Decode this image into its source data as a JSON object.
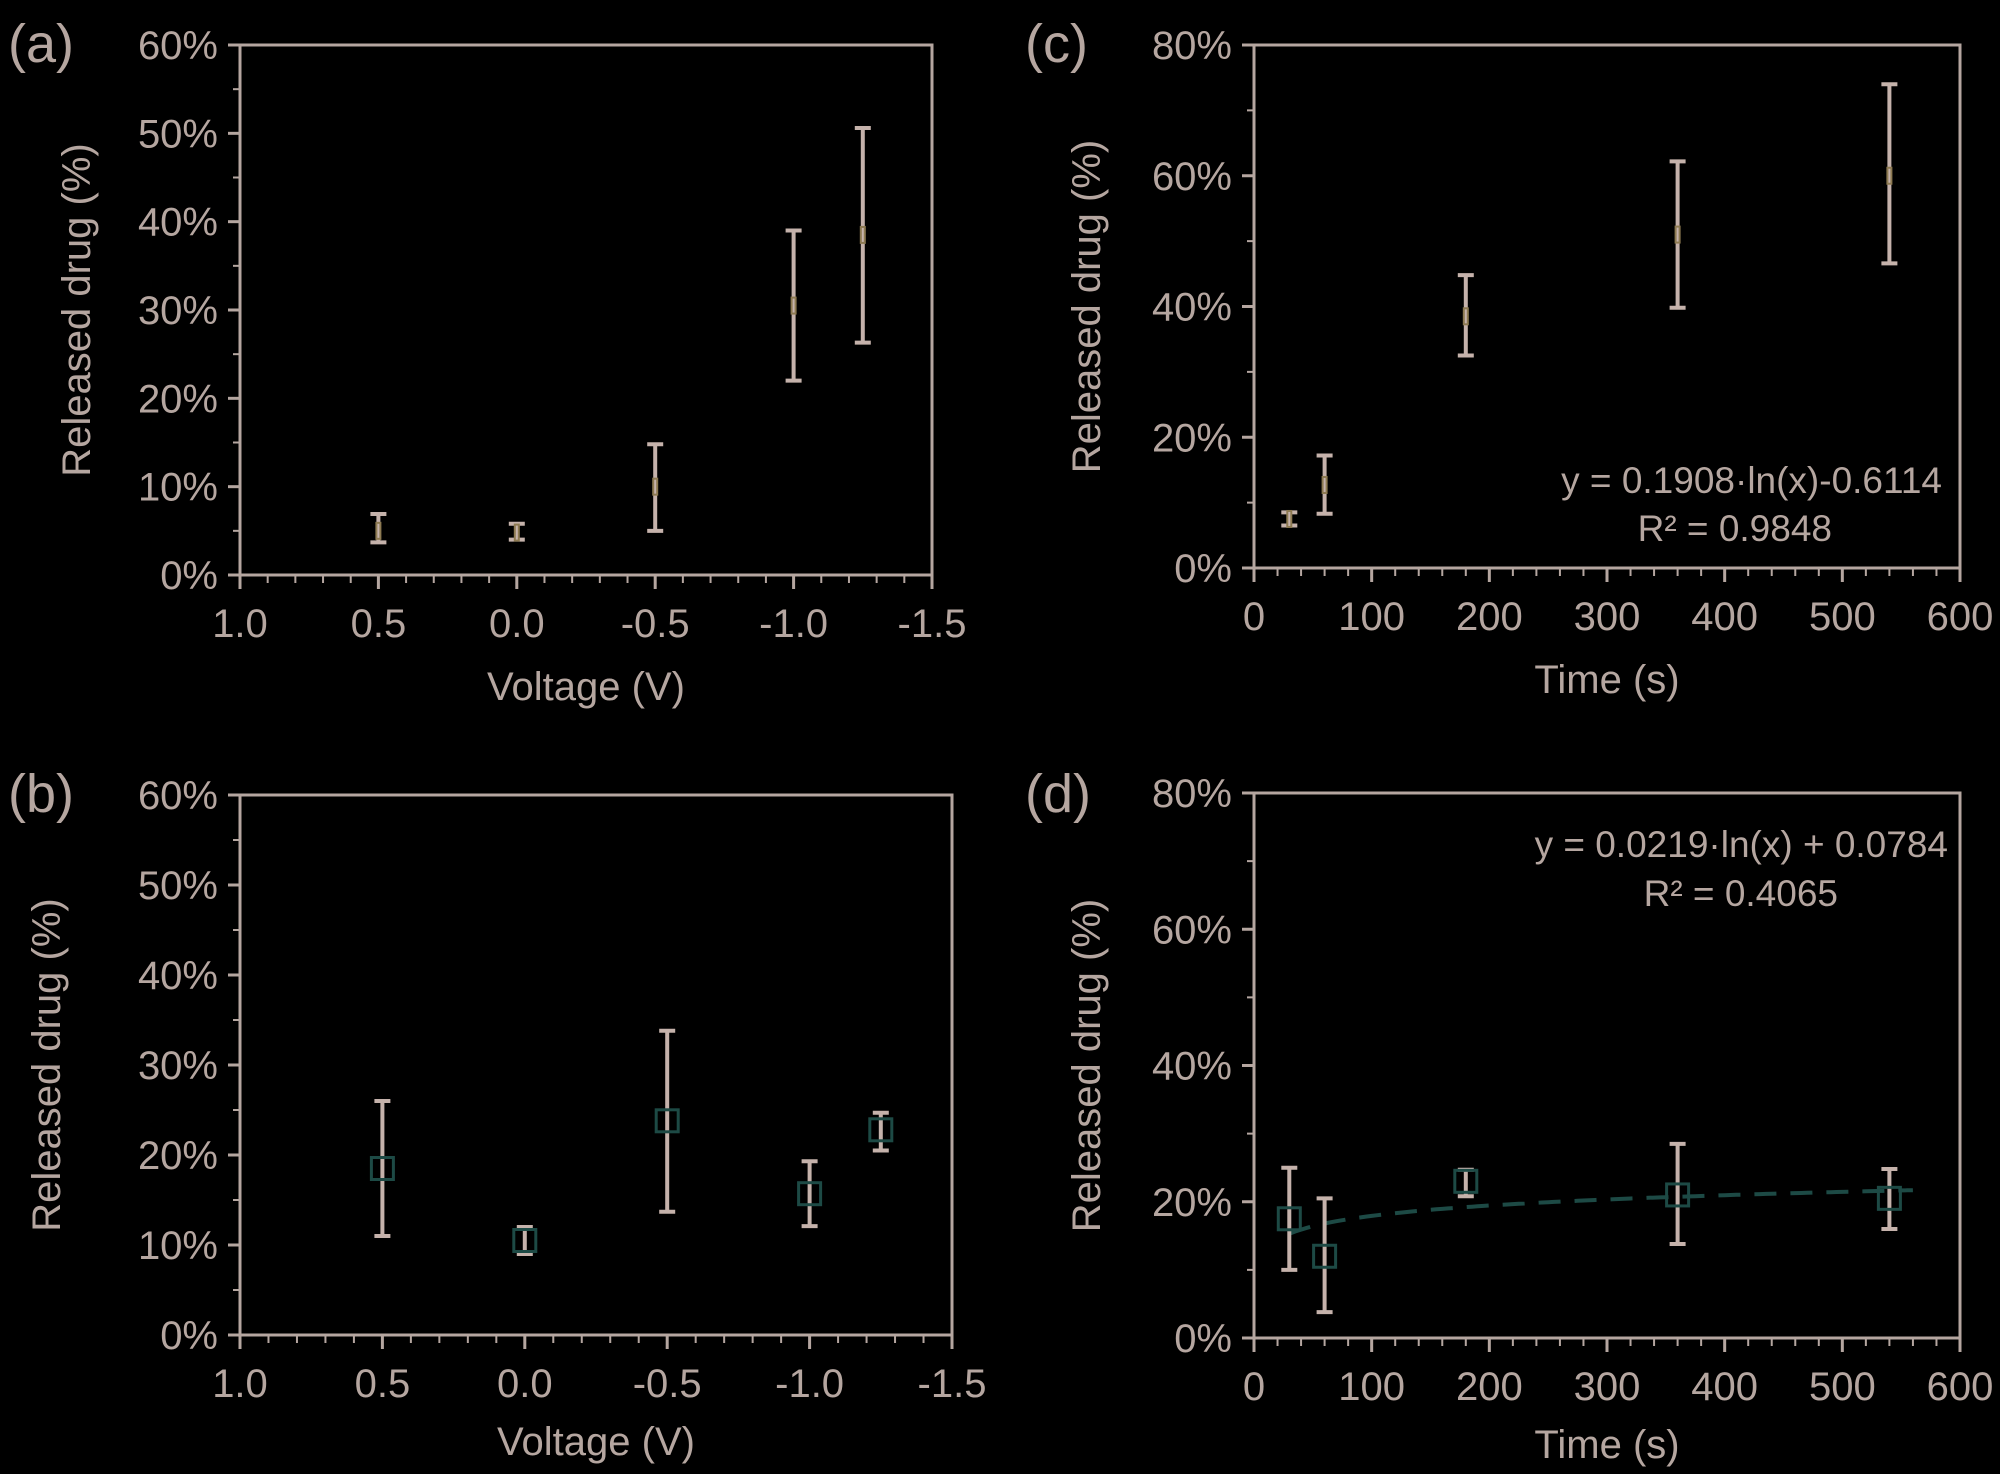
{
  "chart_data": [
    {
      "id": "a",
      "type": "scatter",
      "panel_label": "(a)",
      "xlabel": "Voltage (V)",
      "ylabel": "Released drug (%)",
      "xlim": [
        1.0,
        -1.5
      ],
      "ylim": [
        0,
        0.6
      ],
      "x_ticks": [
        "1.0",
        "0.5",
        "0.0",
        "-0.5",
        "-1.0",
        "-1.5"
      ],
      "y_ticks": [
        "0%",
        "10%",
        "20%",
        "30%",
        "40%",
        "50%",
        "60%"
      ],
      "series": [
        {
          "name": "released",
          "x": [
            0.5,
            0.0,
            -0.5,
            -1.0,
            -1.25
          ],
          "y": [
            0.05,
            0.048,
            0.1,
            0.305,
            0.385
          ],
          "err_low": [
            0.037,
            0.04,
            0.05,
            0.22,
            0.263
          ],
          "err_high": [
            0.069,
            0.058,
            0.148,
            0.39,
            0.506
          ]
        }
      ],
      "marker": "a"
    },
    {
      "id": "b",
      "type": "scatter",
      "panel_label": "(b)",
      "xlabel": "Voltage (V)",
      "ylabel": "Released drug (%)",
      "xlim": [
        1.0,
        -1.5
      ],
      "ylim": [
        0,
        0.6
      ],
      "x_ticks": [
        "1.0",
        "0.5",
        "0.0",
        "-0.5",
        "-1.0",
        "-1.5"
      ],
      "y_ticks": [
        "0%",
        "10%",
        "20%",
        "30%",
        "40%",
        "50%",
        "60%"
      ],
      "series": [
        {
          "name": "released",
          "x": [
            0.5,
            0.0,
            -0.5,
            -1.0,
            -1.25
          ],
          "y": [
            0.185,
            0.105,
            0.238,
            0.157,
            0.228
          ],
          "err_low": [
            0.11,
            0.09,
            0.137,
            0.121,
            0.205
          ],
          "err_high": [
            0.26,
            0.12,
            0.338,
            0.193,
            0.247
          ]
        }
      ],
      "marker": "b"
    },
    {
      "id": "c",
      "type": "scatter",
      "panel_label": "(c)",
      "xlabel": "Time (s)",
      "ylabel": "Released drug (%)",
      "xlim": [
        0,
        600
      ],
      "ylim": [
        0,
        0.8
      ],
      "x_ticks": [
        "0",
        "100",
        "200",
        "300",
        "400",
        "500",
        "600"
      ],
      "y_ticks": [
        "0%",
        "20%",
        "40%",
        "60%",
        "80%"
      ],
      "series": [
        {
          "name": "released",
          "x": [
            30,
            60,
            180,
            360,
            540
          ],
          "y": [
            0.075,
            0.127,
            0.385,
            0.51,
            0.6
          ],
          "err_low": [
            0.065,
            0.083,
            0.325,
            0.398,
            0.466
          ],
          "err_high": [
            0.085,
            0.172,
            0.448,
            0.622,
            0.74
          ]
        }
      ],
      "marker": "a",
      "trendline": {
        "equation": "y = 0.1908·ln(x)-0.6114",
        "r2": "R² = 0.9848",
        "a": 0.1908,
        "b": -0.6114
      }
    },
    {
      "id": "d",
      "type": "scatter",
      "panel_label": "(d)",
      "xlabel": "Time (s)",
      "ylabel": "Released  drug (%)",
      "xlim": [
        0,
        600
      ],
      "ylim": [
        0,
        0.8
      ],
      "x_ticks": [
        "0",
        "100",
        "200",
        "300",
        "400",
        "500",
        "600"
      ],
      "y_ticks": [
        "0%",
        "20%",
        "40%",
        "60%",
        "80%"
      ],
      "series": [
        {
          "name": "released",
          "x": [
            30,
            60,
            180,
            360,
            540
          ],
          "y": [
            0.175,
            0.12,
            0.23,
            0.21,
            0.205
          ],
          "err_low": [
            0.1,
            0.038,
            0.208,
            0.138,
            0.16
          ],
          "err_high": [
            0.25,
            0.205,
            0.247,
            0.285,
            0.248
          ]
        }
      ],
      "marker": "b",
      "trendline": {
        "equation": "y = 0.0219·ln(x) + 0.0784",
        "r2": "R² = 0.4065",
        "a": 0.0219,
        "b": 0.0784,
        "show_line": true
      }
    }
  ]
}
